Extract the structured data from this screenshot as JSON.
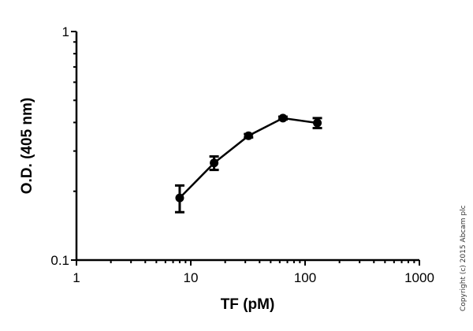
{
  "chart_data": {
    "type": "line",
    "title": "",
    "xlabel": "TF (pM)",
    "ylabel": "O.D. (405 nm)",
    "xscale": "log",
    "yscale": "log",
    "xlim": [
      1,
      1000
    ],
    "ylim": [
      0.1,
      1
    ],
    "x_ticks": [
      "1",
      "10",
      "100",
      "1000"
    ],
    "y_ticks": [
      "0.1",
      "1"
    ],
    "grid": false,
    "legend": null,
    "series": [
      {
        "name": "TF",
        "x": [
          8,
          16,
          32,
          64,
          128
        ],
        "y": [
          0.187,
          0.266,
          0.35,
          0.418,
          0.398
        ],
        "error": [
          0.025,
          0.018,
          0.006,
          0.006,
          0.02
        ]
      }
    ]
  },
  "copyright": "Copyright (c) 2015 Abcam plc"
}
